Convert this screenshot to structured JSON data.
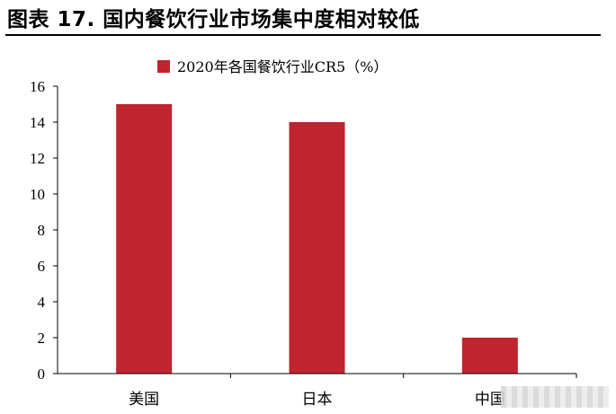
{
  "header": {
    "title": "图表 17. 国内餐饮行业市场集中度相对较低"
  },
  "chart_data": {
    "type": "bar",
    "categories": [
      "美国",
      "日本",
      "中国"
    ],
    "series": [
      {
        "name": "2020年各国餐饮行业CR5（%）",
        "values": [
          15,
          14,
          2
        ],
        "color": "#c0242f"
      }
    ],
    "ylim": [
      0,
      16
    ],
    "yticks": [
      0,
      2,
      4,
      6,
      8,
      10,
      12,
      14,
      16
    ],
    "xlabel": "",
    "ylabel": "",
    "grid": false,
    "legend": "top-center"
  }
}
